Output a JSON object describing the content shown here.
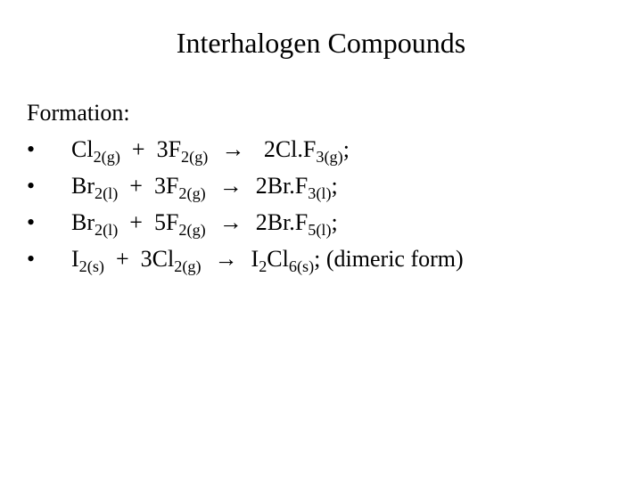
{
  "title": "Interhalogen Compounds",
  "heading": "Formation:",
  "bullet_char": "•",
  "reactions": [
    {
      "r1": {
        "el": "Cl",
        "n": "2",
        "state": "g"
      },
      "plus": "+",
      "r2": {
        "coef": "3",
        "el": "F",
        "n": "2",
        "state": "g"
      },
      "arrow": "→",
      "p": {
        "coef": "2",
        "comp": "Cl.F",
        "n": "3",
        "state": "g"
      },
      "tail": ";"
    },
    {
      "r1": {
        "el": "Br",
        "n": "2",
        "state": "l"
      },
      "plus": "+",
      "r2": {
        "coef": "3",
        "el": "F",
        "n": "2",
        "state": "g"
      },
      "arrow": "→",
      "p": {
        "coef": "2",
        "comp": "Br.F",
        "n": "3",
        "state": "l"
      },
      "tail": ";"
    },
    {
      "r1": {
        "el": "Br",
        "n": "2",
        "state": "l"
      },
      "plus": "+",
      "r2": {
        "coef": "5",
        "el": "F",
        "n": "2",
        "state": "g"
      },
      "arrow": "→",
      "p": {
        "coef": "2",
        "comp": "Br.F",
        "n": "5",
        "state": "l"
      },
      "tail": ";"
    },
    {
      "r1": {
        "el": "I",
        "n": "2",
        "state": "s"
      },
      "plus": "+",
      "r2": {
        "coef": "3",
        "el": "Cl",
        "n": "2",
        "state": "g"
      },
      "arrow": "→",
      "p": {
        "comp_pre": "I",
        "pre_n": "2",
        "comp": "Cl",
        "n": "6",
        "state": "s"
      },
      "tail": ";  (dimeric form)"
    }
  ],
  "style": {
    "background_color": "#ffffff",
    "text_color": "#000000",
    "title_fontsize": 32,
    "body_fontsize": 26,
    "font_family": "Times New Roman"
  }
}
